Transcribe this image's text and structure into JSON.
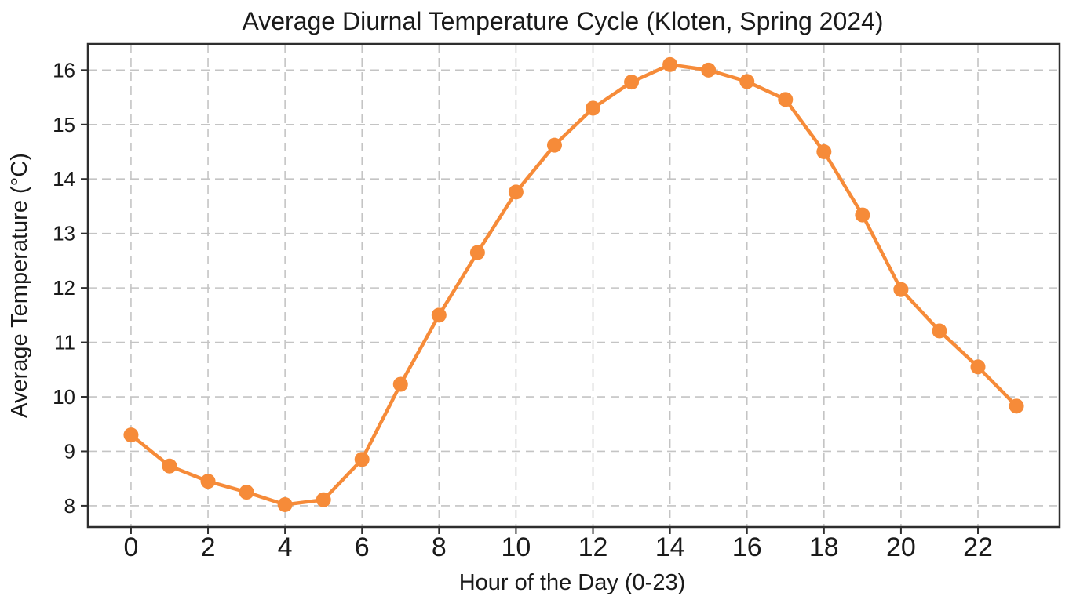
{
  "chart_data": {
    "type": "line",
    "title": "Average Diurnal Temperature Cycle (Kloten, Spring 2024)",
    "xlabel": "Hour of the Day (0-23)",
    "ylabel": "Average Temperature (°C)",
    "x": [
      0,
      1,
      2,
      3,
      4,
      5,
      6,
      7,
      8,
      9,
      10,
      11,
      12,
      13,
      14,
      15,
      16,
      17,
      18,
      19,
      20,
      21,
      22,
      23
    ],
    "series": [
      {
        "name": "Average Temperature",
        "values": [
          9.3,
          8.73,
          8.45,
          8.25,
          8.02,
          8.11,
          8.85,
          10.23,
          11.5,
          12.65,
          13.76,
          14.62,
          15.3,
          15.78,
          16.1,
          16.0,
          15.79,
          15.46,
          14.5,
          13.34,
          11.97,
          11.21,
          10.55,
          9.83
        ]
      }
    ],
    "xticks": [
      0,
      2,
      4,
      6,
      8,
      10,
      12,
      14,
      16,
      18,
      20,
      22
    ],
    "yticks": [
      8,
      9,
      10,
      11,
      12,
      13,
      14,
      15,
      16
    ],
    "xlim": [
      -1.12,
      24.12
    ],
    "ylim": [
      7.61,
      16.48
    ],
    "grid": true,
    "grid_style": "dashed",
    "legend_position": "none",
    "line_color": "#f68b39",
    "marker": "circle",
    "grid_color": "#c4c4c4",
    "spine_color": "#2e2e2e",
    "text_color": "#1a1a1a",
    "background_color": "#ffffff"
  }
}
